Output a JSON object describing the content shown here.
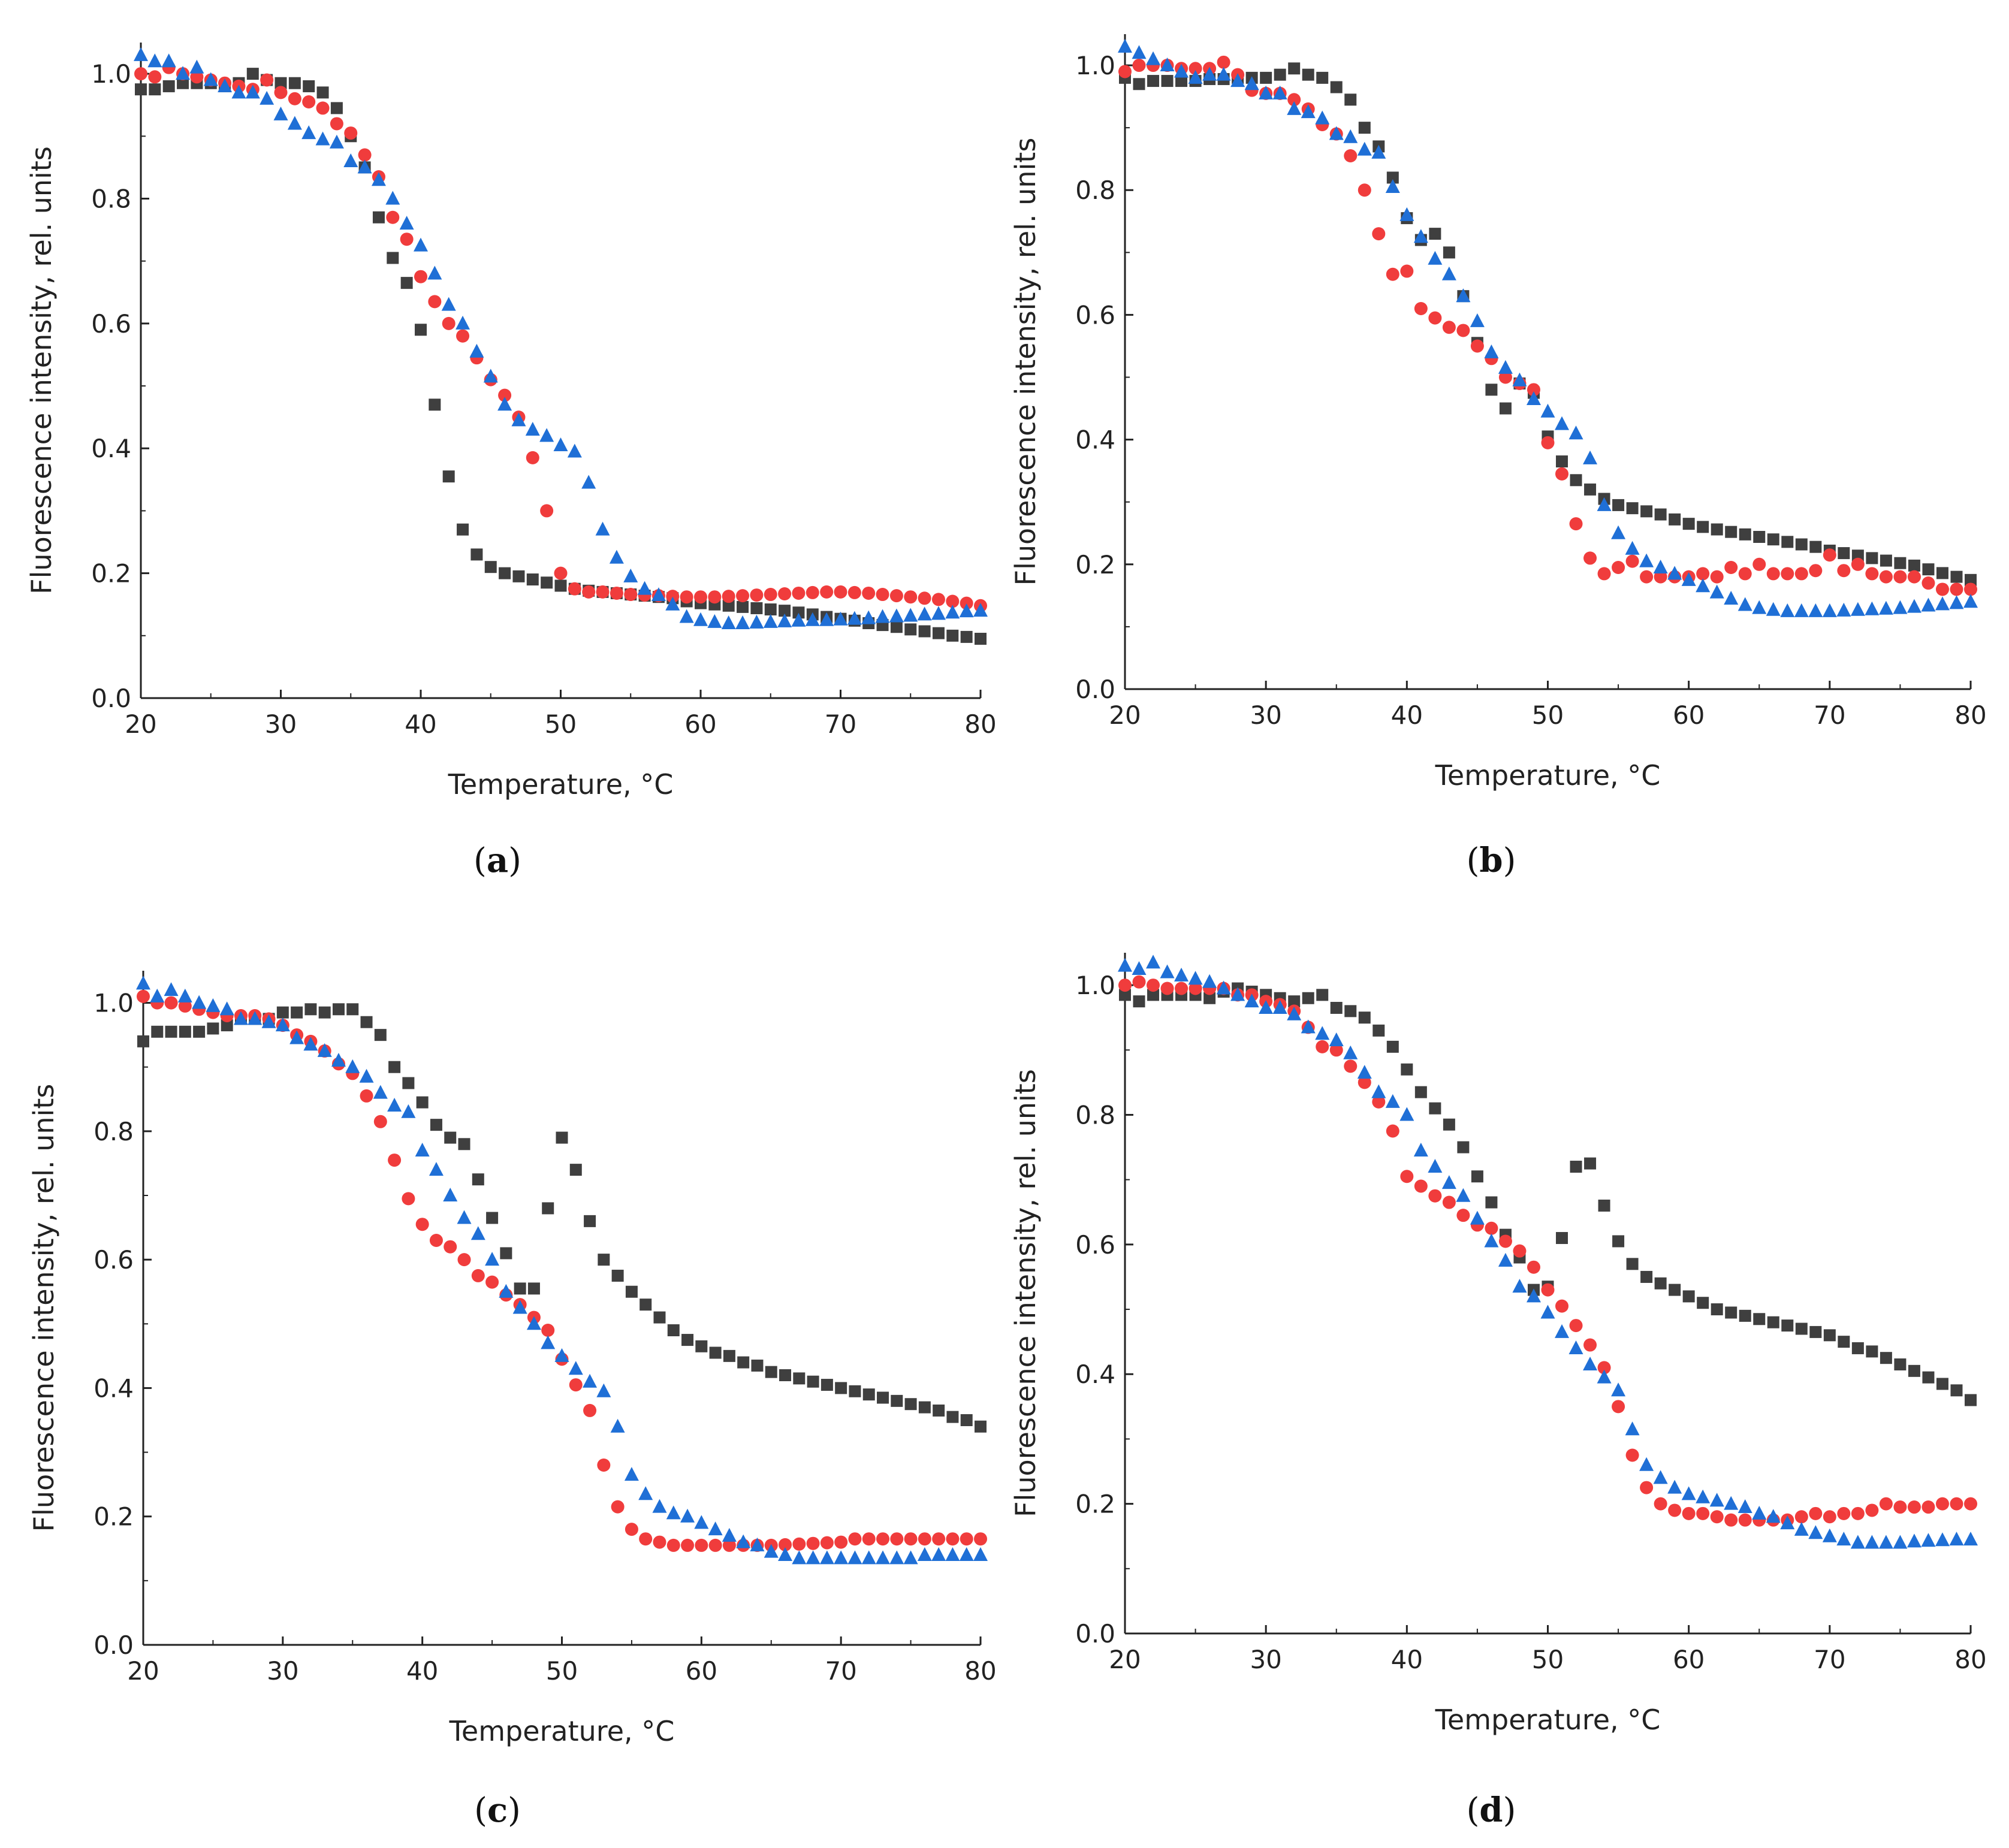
{
  "colors": {
    "series_square": "#3f3f3f",
    "series_circle": "#f03c3c",
    "series_triangle": "#1f6fd6"
  },
  "chart_data": [
    {
      "type": "scatter",
      "panel": "a",
      "caption": "a",
      "xlabel": "Temperature, °C",
      "ylabel": "Fluorescence intensity, rel. units",
      "xlim": [
        20,
        80
      ],
      "ylim": [
        0,
        1.05
      ],
      "xticks": [
        "20",
        "30",
        "40",
        "50",
        "60",
        "70",
        "80"
      ],
      "yticks": [
        "0.0",
        "0.2",
        "0.4",
        "0.6",
        "0.8",
        "1.0"
      ],
      "x_start": 20,
      "x_step": 1,
      "series": [
        {
          "name": "squares",
          "marker": "square",
          "values": [
            0.975,
            0.975,
            0.98,
            0.985,
            0.985,
            0.985,
            0.98,
            0.985,
            1.0,
            0.99,
            0.985,
            0.985,
            0.98,
            0.97,
            0.945,
            0.9,
            0.85,
            0.77,
            0.705,
            0.665,
            0.59,
            0.47,
            0.355,
            0.27,
            0.23,
            0.21,
            0.2,
            0.195,
            0.19,
            0.185,
            0.18,
            0.175,
            0.172,
            0.17,
            0.168,
            0.166,
            0.164,
            0.162,
            0.16,
            0.155,
            0.152,
            0.15,
            0.148,
            0.146,
            0.144,
            0.142,
            0.14,
            0.137,
            0.134,
            0.13,
            0.127,
            0.124,
            0.12,
            0.117,
            0.114,
            0.11,
            0.107,
            0.104,
            0.1,
            0.098,
            0.095
          ]
        },
        {
          "name": "circles",
          "marker": "circle",
          "values": [
            1.0,
            0.995,
            1.01,
            1.0,
            0.995,
            0.99,
            0.985,
            0.98,
            0.975,
            0.99,
            0.97,
            0.96,
            0.955,
            0.945,
            0.92,
            0.905,
            0.87,
            0.835,
            0.77,
            0.735,
            0.675,
            0.635,
            0.6,
            0.58,
            0.545,
            0.51,
            0.485,
            0.45,
            0.385,
            0.3,
            0.2,
            0.175,
            0.17,
            0.17,
            0.168,
            0.166,
            0.165,
            0.164,
            0.163,
            0.162,
            0.162,
            0.162,
            0.163,
            0.164,
            0.165,
            0.166,
            0.167,
            0.168,
            0.169,
            0.17,
            0.17,
            0.169,
            0.168,
            0.166,
            0.164,
            0.162,
            0.16,
            0.158,
            0.155,
            0.152,
            0.148
          ]
        },
        {
          "name": "triangles",
          "marker": "triangle",
          "values": [
            1.03,
            1.02,
            1.02,
            1.0,
            1.01,
            0.99,
            0.98,
            0.97,
            0.97,
            0.96,
            0.935,
            0.92,
            0.905,
            0.895,
            0.89,
            0.86,
            0.85,
            0.83,
            0.8,
            0.76,
            0.725,
            0.68,
            0.63,
            0.6,
            0.555,
            0.515,
            0.47,
            0.445,
            0.43,
            0.42,
            0.405,
            0.395,
            0.345,
            0.27,
            0.225,
            0.195,
            0.175,
            0.165,
            0.15,
            0.13,
            0.125,
            0.122,
            0.12,
            0.12,
            0.121,
            0.122,
            0.123,
            0.124,
            0.125,
            0.125,
            0.126,
            0.127,
            0.128,
            0.13,
            0.131,
            0.132,
            0.134,
            0.135,
            0.137,
            0.139,
            0.14
          ]
        }
      ]
    },
    {
      "type": "scatter",
      "panel": "b",
      "caption": "b",
      "xlabel": "Temperature, °C",
      "ylabel": "Fluorescence intensity, rel. units",
      "xlim": [
        20,
        80
      ],
      "ylim": [
        0,
        1.05
      ],
      "xticks": [
        "20",
        "30",
        "40",
        "50",
        "60",
        "70",
        "80"
      ],
      "yticks": [
        "0.0",
        "0.2",
        "0.4",
        "0.6",
        "0.8",
        "1.0"
      ],
      "x_start": 20,
      "x_step": 1,
      "series": [
        {
          "name": "squares",
          "marker": "square",
          "values": [
            0.98,
            0.97,
            0.975,
            0.975,
            0.975,
            0.975,
            0.978,
            0.978,
            0.98,
            0.98,
            0.98,
            0.985,
            0.995,
            0.985,
            0.98,
            0.965,
            0.945,
            0.9,
            0.87,
            0.82,
            0.755,
            0.72,
            0.73,
            0.7,
            0.63,
            0.555,
            0.48,
            0.45,
            0.49,
            0.475,
            0.405,
            0.365,
            0.335,
            0.32,
            0.305,
            0.295,
            0.29,
            0.285,
            0.28,
            0.272,
            0.265,
            0.26,
            0.256,
            0.252,
            0.248,
            0.244,
            0.24,
            0.236,
            0.232,
            0.228,
            0.222,
            0.218,
            0.214,
            0.21,
            0.206,
            0.202,
            0.198,
            0.192,
            0.186,
            0.18,
            0.175
          ]
        },
        {
          "name": "circles",
          "marker": "circle",
          "values": [
            0.99,
            1.0,
            1.0,
            1.0,
            0.995,
            0.995,
            0.995,
            1.005,
            0.985,
            0.96,
            0.955,
            0.955,
            0.945,
            0.93,
            0.905,
            0.89,
            0.855,
            0.8,
            0.73,
            0.665,
            0.67,
            0.61,
            0.595,
            0.58,
            0.575,
            0.55,
            0.53,
            0.5,
            0.49,
            0.48,
            0.395,
            0.345,
            0.265,
            0.21,
            0.185,
            0.195,
            0.205,
            0.18,
            0.18,
            0.18,
            0.18,
            0.185,
            0.18,
            0.195,
            0.185,
            0.2,
            0.185,
            0.185,
            0.185,
            0.19,
            0.215,
            0.19,
            0.2,
            0.185,
            0.18,
            0.18,
            0.18,
            0.17,
            0.16,
            0.16,
            0.16
          ]
        },
        {
          "name": "triangles",
          "marker": "triangle",
          "values": [
            1.03,
            1.02,
            1.01,
            1.0,
            0.99,
            0.98,
            0.985,
            0.985,
            0.975,
            0.97,
            0.955,
            0.955,
            0.93,
            0.925,
            0.915,
            0.89,
            0.885,
            0.865,
            0.86,
            0.805,
            0.76,
            0.725,
            0.69,
            0.665,
            0.63,
            0.59,
            0.54,
            0.515,
            0.495,
            0.465,
            0.445,
            0.425,
            0.41,
            0.37,
            0.295,
            0.25,
            0.225,
            0.205,
            0.195,
            0.185,
            0.175,
            0.165,
            0.155,
            0.145,
            0.135,
            0.13,
            0.127,
            0.125,
            0.125,
            0.125,
            0.125,
            0.126,
            0.127,
            0.128,
            0.129,
            0.13,
            0.132,
            0.134,
            0.136,
            0.138,
            0.14
          ]
        }
      ]
    },
    {
      "type": "scatter",
      "panel": "c",
      "caption": "c",
      "xlabel": "Temperature, °C",
      "ylabel": "Fluorescence intensity, rel. units",
      "xlim": [
        20,
        80
      ],
      "ylim": [
        0,
        1.05
      ],
      "xticks": [
        "20",
        "30",
        "40",
        "50",
        "60",
        "70",
        "80"
      ],
      "yticks": [
        "0.0",
        "0.2",
        "0.4",
        "0.6",
        "0.8",
        "1.0"
      ],
      "x_start": 20,
      "x_step": 1,
      "series": [
        {
          "name": "squares",
          "marker": "square",
          "values": [
            0.94,
            0.955,
            0.955,
            0.955,
            0.955,
            0.96,
            0.965,
            0.975,
            0.975,
            0.975,
            0.985,
            0.985,
            0.99,
            0.985,
            0.99,
            0.99,
            0.97,
            0.95,
            0.9,
            0.875,
            0.845,
            0.81,
            0.79,
            0.78,
            0.725,
            0.665,
            0.61,
            0.555,
            0.555,
            0.68,
            0.79,
            0.74,
            0.66,
            0.6,
            0.575,
            0.55,
            0.53,
            0.51,
            0.49,
            0.475,
            0.465,
            0.455,
            0.45,
            0.44,
            0.435,
            0.425,
            0.42,
            0.415,
            0.41,
            0.405,
            0.4,
            0.395,
            0.39,
            0.385,
            0.38,
            0.375,
            0.37,
            0.365,
            0.355,
            0.35,
            0.34
          ]
        },
        {
          "name": "circles",
          "marker": "circle",
          "values": [
            1.01,
            1.0,
            1.0,
            0.995,
            0.99,
            0.985,
            0.98,
            0.98,
            0.98,
            0.975,
            0.965,
            0.95,
            0.94,
            0.925,
            0.905,
            0.89,
            0.855,
            0.815,
            0.755,
            0.695,
            0.655,
            0.63,
            0.62,
            0.6,
            0.575,
            0.565,
            0.545,
            0.53,
            0.51,
            0.49,
            0.445,
            0.405,
            0.365,
            0.28,
            0.215,
            0.18,
            0.165,
            0.16,
            0.155,
            0.155,
            0.155,
            0.155,
            0.155,
            0.155,
            0.155,
            0.155,
            0.156,
            0.157,
            0.158,
            0.159,
            0.16,
            0.165,
            0.165,
            0.165,
            0.165,
            0.165,
            0.165,
            0.165,
            0.165,
            0.165,
            0.165
          ]
        },
        {
          "name": "triangles",
          "marker": "triangle",
          "values": [
            1.03,
            1.01,
            1.02,
            1.01,
            1.0,
            0.995,
            0.99,
            0.975,
            0.975,
            0.97,
            0.965,
            0.945,
            0.935,
            0.925,
            0.91,
            0.9,
            0.885,
            0.86,
            0.84,
            0.83,
            0.77,
            0.74,
            0.7,
            0.665,
            0.64,
            0.6,
            0.55,
            0.525,
            0.5,
            0.47,
            0.45,
            0.43,
            0.41,
            0.395,
            0.34,
            0.265,
            0.235,
            0.215,
            0.205,
            0.2,
            0.19,
            0.18,
            0.17,
            0.16,
            0.155,
            0.145,
            0.14,
            0.135,
            0.135,
            0.135,
            0.135,
            0.135,
            0.135,
            0.135,
            0.135,
            0.135,
            0.14,
            0.14,
            0.14,
            0.14,
            0.14
          ]
        }
      ]
    },
    {
      "type": "scatter",
      "panel": "d",
      "caption": "d",
      "xlabel": "Temperature, °C",
      "ylabel": "Fluorescence intensity, rel. units",
      "xlim": [
        20,
        80
      ],
      "ylim": [
        0,
        1.05
      ],
      "xticks": [
        "20",
        "30",
        "40",
        "50",
        "60",
        "70",
        "80"
      ],
      "yticks": [
        "0.0",
        "0.2",
        "0.4",
        "0.6",
        "0.8",
        "1.0"
      ],
      "x_start": 20,
      "x_step": 1,
      "series": [
        {
          "name": "squares",
          "marker": "square",
          "values": [
            0.985,
            0.975,
            0.985,
            0.985,
            0.985,
            0.985,
            0.98,
            0.99,
            0.995,
            0.99,
            0.985,
            0.98,
            0.975,
            0.98,
            0.985,
            0.965,
            0.96,
            0.95,
            0.93,
            0.905,
            0.87,
            0.835,
            0.81,
            0.785,
            0.75,
            0.705,
            0.665,
            0.615,
            0.58,
            0.53,
            0.535,
            0.61,
            0.72,
            0.725,
            0.66,
            0.605,
            0.57,
            0.55,
            0.54,
            0.53,
            0.52,
            0.51,
            0.5,
            0.495,
            0.49,
            0.485,
            0.48,
            0.475,
            0.47,
            0.465,
            0.46,
            0.45,
            0.44,
            0.435,
            0.425,
            0.415,
            0.405,
            0.395,
            0.385,
            0.375,
            0.36
          ]
        },
        {
          "name": "circles",
          "marker": "circle",
          "values": [
            1.0,
            1.005,
            1.0,
            0.995,
            0.995,
            0.995,
            0.995,
            0.995,
            0.985,
            0.985,
            0.975,
            0.97,
            0.96,
            0.935,
            0.905,
            0.9,
            0.875,
            0.85,
            0.82,
            0.775,
            0.705,
            0.69,
            0.675,
            0.665,
            0.645,
            0.63,
            0.625,
            0.605,
            0.59,
            0.565,
            0.53,
            0.505,
            0.475,
            0.445,
            0.41,
            0.35,
            0.275,
            0.225,
            0.2,
            0.19,
            0.185,
            0.185,
            0.18,
            0.175,
            0.175,
            0.175,
            0.175,
            0.175,
            0.18,
            0.185,
            0.18,
            0.185,
            0.185,
            0.19,
            0.2,
            0.195,
            0.195,
            0.195,
            0.2,
            0.2,
            0.2
          ]
        },
        {
          "name": "triangles",
          "marker": "triangle",
          "values": [
            1.03,
            1.025,
            1.035,
            1.02,
            1.015,
            1.01,
            1.005,
            0.995,
            0.985,
            0.975,
            0.965,
            0.965,
            0.955,
            0.935,
            0.925,
            0.915,
            0.895,
            0.865,
            0.835,
            0.82,
            0.8,
            0.745,
            0.72,
            0.695,
            0.675,
            0.64,
            0.605,
            0.575,
            0.535,
            0.52,
            0.495,
            0.465,
            0.44,
            0.415,
            0.395,
            0.375,
            0.315,
            0.26,
            0.24,
            0.225,
            0.215,
            0.21,
            0.205,
            0.2,
            0.195,
            0.185,
            0.18,
            0.17,
            0.16,
            0.155,
            0.15,
            0.145,
            0.14,
            0.14,
            0.14,
            0.14,
            0.142,
            0.143,
            0.144,
            0.145,
            0.145
          ]
        }
      ]
    }
  ]
}
